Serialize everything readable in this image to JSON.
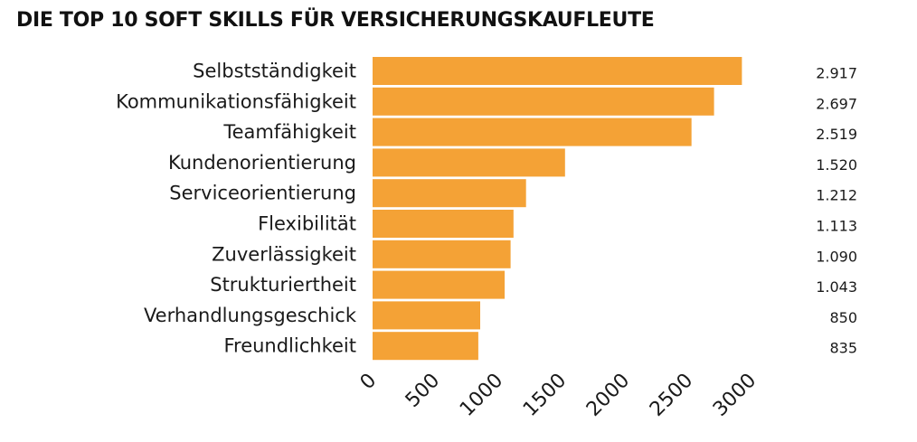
{
  "chart_data": {
    "type": "bar",
    "orientation": "horizontal",
    "title": "DIE TOP 10 SOFT SKILLS FÜR VERSICHERUNGSKAUFLEUTE",
    "categories": [
      "Selbstständigkeit",
      "Kommunikationsfähigkeit",
      "Teamfähigkeit",
      "Kundenorientierung",
      "Serviceorientierung",
      "Flexibilität",
      "Zuverlässigkeit",
      "Strukturiertheit",
      "Verhandlungsgeschick",
      "Freundlichkeit"
    ],
    "values": [
      2917,
      2697,
      2519,
      1520,
      1212,
      1113,
      1090,
      1043,
      850,
      835
    ],
    "value_labels": [
      "2.917",
      "2.697",
      "2.519",
      "1.520",
      "1.212",
      "1.113",
      "1.090",
      "1.043",
      "850",
      "835"
    ],
    "xticks": [
      "0",
      "500",
      "1000",
      "1500",
      "2000",
      "2500",
      "3000"
    ],
    "xlim": [
      0,
      3000
    ],
    "bar_color": "#F4A236",
    "grid": false,
    "legend": "none"
  }
}
